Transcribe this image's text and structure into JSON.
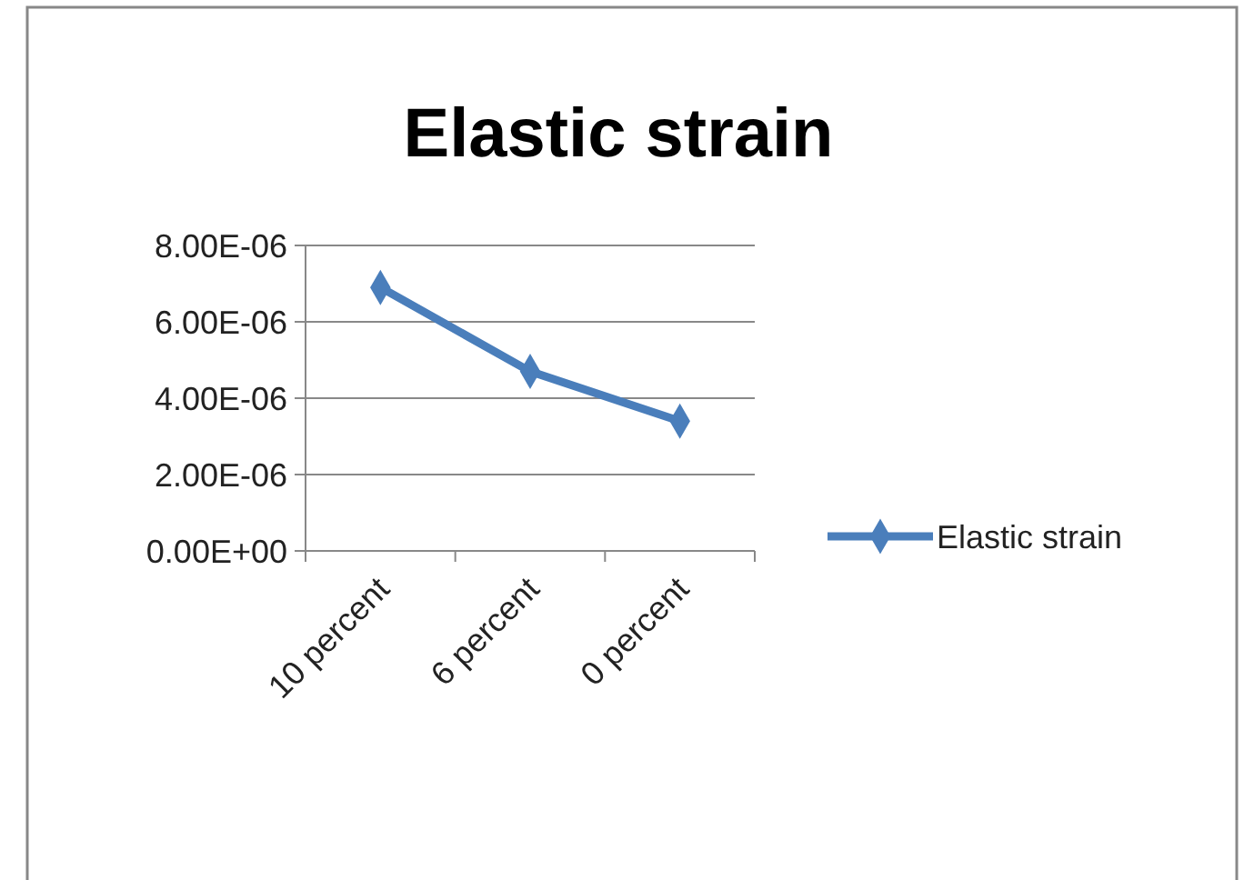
{
  "chart_data": {
    "type": "line",
    "title": "Elastic strain",
    "categories": [
      "10 percent",
      "6 percent",
      "0 percent"
    ],
    "series": [
      {
        "name": "Elastic strain",
        "color": "#4a7ebb",
        "values": [
          6.9e-06,
          4.7e-06,
          3.4e-06
        ]
      }
    ],
    "ylim": [
      0,
      8e-06
    ],
    "yticks": [
      {
        "value": 0,
        "label": "0.00E+00"
      },
      {
        "value": 2e-06,
        "label": "2.00E-06"
      },
      {
        "value": 4e-06,
        "label": "4.00E-06"
      },
      {
        "value": 6e-06,
        "label": "6.00E-06"
      },
      {
        "value": 8e-06,
        "label": "8.00E-06"
      }
    ],
    "grid": "y",
    "legend": "right",
    "marker": "diamond",
    "line_style": "solid"
  }
}
